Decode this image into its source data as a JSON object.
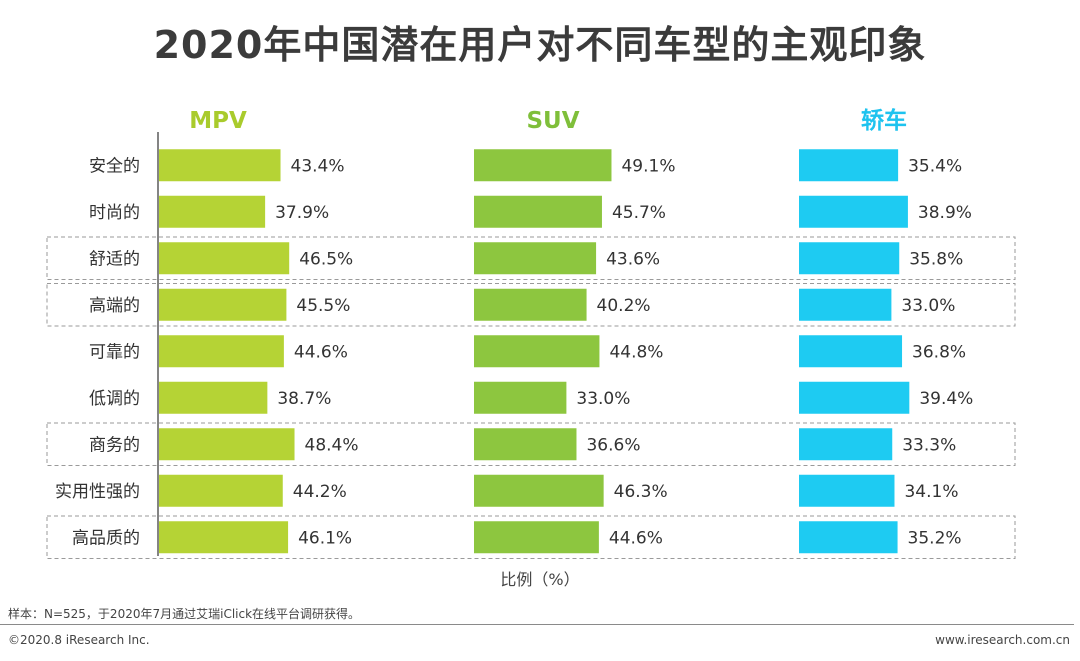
{
  "chart_data": {
    "type": "bar",
    "orientation": "horizontal",
    "title": "2020年中国潜在用户对不同车型的主观印象",
    "xlabel": "比例（%）",
    "categories": [
      "安全的",
      "时尚的",
      "舒适的",
      "高端的",
      "可靠的",
      "低调的",
      "商务的",
      "实用性强的",
      "高品质的"
    ],
    "highlighted_categories": [
      "舒适的",
      "高端的",
      "商务的",
      "高品质的"
    ],
    "value_suffix": "%",
    "series": [
      {
        "name": "MPV",
        "color": "#b5d335",
        "label_color": "#a9cb2c",
        "values": [
          43.4,
          37.9,
          46.5,
          45.5,
          44.6,
          38.7,
          48.4,
          44.2,
          46.1
        ]
      },
      {
        "name": "SUV",
        "color": "#8dc63f",
        "label_color": "#7fbf3a",
        "values": [
          49.1,
          45.7,
          43.6,
          40.2,
          44.8,
          33.0,
          36.6,
          46.3,
          44.6
        ]
      },
      {
        "name": "轿车",
        "color": "#1ecbf2",
        "label_color": "#1ec3ef",
        "values": [
          35.4,
          38.9,
          35.8,
          33.0,
          36.8,
          39.4,
          33.3,
          34.1,
          35.2
        ]
      }
    ]
  },
  "footnote": "样本：N=525，于2020年7月通过艾瑞iClick在线平台调研获得。",
  "copyright": "©2020.8 iResearch Inc.",
  "website": "www.iresearch.com.cn"
}
